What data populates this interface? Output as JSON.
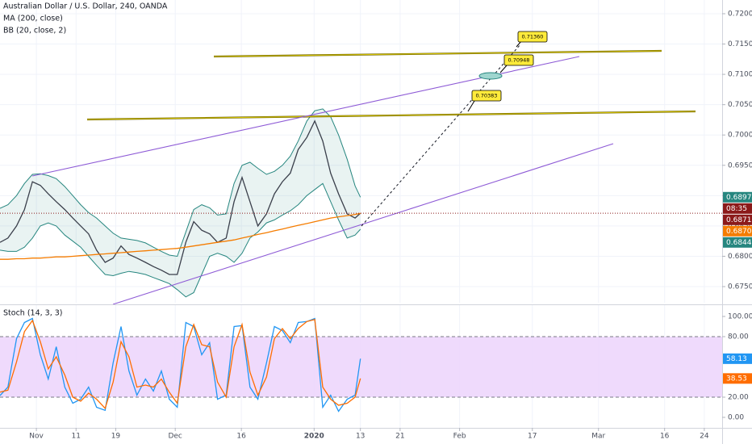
{
  "chart_data": {
    "type": "line",
    "x": [
      -5.5,
      -4.3,
      -3.0,
      -1.8,
      -0.6,
      0.6,
      1.8,
      3.0,
      4.3,
      5.5,
      6.7,
      7.9,
      9.1,
      10.4,
      11.6,
      12.8,
      14.0,
      15.2,
      16.5,
      17.7,
      18.9,
      20.1,
      21.3,
      22.6,
      23.8,
      25.0,
      26.2,
      27.4,
      28.7,
      29.9,
      31.1,
      32.3,
      33.5,
      34.8,
      36.0,
      37.2,
      38.4,
      39.6,
      40.9,
      42.1,
      43.3,
      44.5,
      45.7,
      47.0,
      48.2,
      49.0
    ],
    "xlim": [
      -5.5,
      103.7
    ],
    "xticks": [
      {
        "value": 0,
        "label": "Nov"
      },
      {
        "value": 6,
        "label": "11"
      },
      {
        "value": 12,
        "label": "19"
      },
      {
        "value": 21,
        "label": "Dec"
      },
      {
        "value": 31,
        "label": "16"
      },
      {
        "value": 42,
        "label": "2020"
      },
      {
        "value": 49,
        "label": "13"
      },
      {
        "value": 55,
        "label": "21"
      },
      {
        "value": 64,
        "label": "Feb"
      },
      {
        "value": 75,
        "label": "17"
      },
      {
        "value": 85,
        "label": "Mar"
      },
      {
        "value": 95,
        "label": "16"
      },
      {
        "value": 101,
        "label": "24"
      }
    ],
    "ylim": [
      0.67234,
      0.72226
    ],
    "yticks": [
      {
        "value": 0.72,
        "label": "0.72000"
      },
      {
        "value": 0.715,
        "label": "0.71500"
      },
      {
        "value": 0.71,
        "label": "0.71000"
      },
      {
        "value": 0.705,
        "label": "0.70500"
      },
      {
        "value": 0.7,
        "label": "0.70000"
      },
      {
        "value": 0.695,
        "label": "0.69500"
      },
      {
        "value": 0.69,
        "label": "0.69000"
      },
      {
        "value": 0.685,
        "label": "0.68500"
      },
      {
        "value": 0.68,
        "label": "0.68000"
      },
      {
        "value": 0.675,
        "label": "0.67500"
      }
    ],
    "grid": true,
    "series": [
      {
        "name": "Australian Dollar / U.S. Dollar, 240, OANDA",
        "color": "#3a3f4b",
        "last_color": "#8b1a1a",
        "last_label": "0.68710",
        "countdown": "08:35",
        "values": [
          0.6823,
          0.683,
          0.685,
          0.6877,
          0.6923,
          0.6917,
          0.6903,
          0.689,
          0.6877,
          0.6863,
          0.685,
          0.6837,
          0.681,
          0.679,
          0.6797,
          0.6817,
          0.6803,
          0.6797,
          0.679,
          0.6783,
          0.6777,
          0.677,
          0.677,
          0.6823,
          0.6857,
          0.6843,
          0.6837,
          0.6823,
          0.683,
          0.689,
          0.693,
          0.689,
          0.685,
          0.687,
          0.6903,
          0.6923,
          0.6937,
          0.6976,
          0.6996,
          0.7023,
          0.699,
          0.6937,
          0.6903,
          0.687,
          0.6863,
          0.6871
        ]
      },
      {
        "name": "MA (200, close)",
        "color": "#f57c00",
        "last_color": "#f57c00",
        "last_label": "0.68708",
        "values": [
          0.6795,
          0.6795,
          0.6796,
          0.6796,
          0.6797,
          0.6797,
          0.6798,
          0.6799,
          0.6799,
          0.68,
          0.6801,
          0.6802,
          0.6803,
          0.6804,
          0.6805,
          0.6806,
          0.6807,
          0.6808,
          0.6809,
          0.681,
          0.6811,
          0.6812,
          0.6813,
          0.6815,
          0.6817,
          0.6819,
          0.6821,
          0.6823,
          0.6825,
          0.6827,
          0.683,
          0.6833,
          0.6836,
          0.6839,
          0.6842,
          0.6845,
          0.6848,
          0.6851,
          0.6854,
          0.6857,
          0.686,
          0.6863,
          0.6865,
          0.6867,
          0.6869,
          0.68708
        ]
      }
    ],
    "band": {
      "name": "BB (20, close, 2)",
      "color": "#26867f",
      "upper_label": "0.68974",
      "lower_label": "0.68446",
      "upper": [
        0.6879,
        0.6885,
        0.69,
        0.692,
        0.6935,
        0.6936,
        0.6933,
        0.6928,
        0.6915,
        0.69,
        0.6885,
        0.6872,
        0.6863,
        0.685,
        0.6838,
        0.683,
        0.6828,
        0.6826,
        0.6822,
        0.6815,
        0.6808,
        0.6802,
        0.68,
        0.684,
        0.6877,
        0.6885,
        0.688,
        0.6868,
        0.687,
        0.692,
        0.695,
        0.6955,
        0.6945,
        0.6935,
        0.694,
        0.695,
        0.6965,
        0.699,
        0.7023,
        0.704,
        0.7043,
        0.703,
        0.7,
        0.696,
        0.6916,
        0.68974
      ],
      "lower": [
        0.681,
        0.6808,
        0.6808,
        0.6815,
        0.683,
        0.685,
        0.6855,
        0.685,
        0.6835,
        0.6825,
        0.6815,
        0.68,
        0.6785,
        0.677,
        0.6768,
        0.6772,
        0.6775,
        0.6773,
        0.677,
        0.6765,
        0.676,
        0.6755,
        0.6745,
        0.6733,
        0.674,
        0.677,
        0.68,
        0.6805,
        0.68,
        0.679,
        0.6805,
        0.683,
        0.684,
        0.6855,
        0.686,
        0.6868,
        0.6875,
        0.6885,
        0.69,
        0.691,
        0.692,
        0.689,
        0.686,
        0.683,
        0.6835,
        0.68446
      ]
    },
    "annotations": [
      "0.71360",
      "0.70948",
      "0.70383"
    ],
    "oscillator": {
      "type": "line",
      "name": "Stoch (14, 3, 3)",
      "ylim": [
        -10.4,
        111.2
      ],
      "yticks": [
        {
          "value": 100,
          "label": "100.00"
        },
        {
          "value": 80,
          "label": "80.00"
        },
        {
          "value": 20,
          "label": "20.00"
        },
        {
          "value": 0,
          "label": "0.00"
        }
      ],
      "band_range": [
        20,
        80
      ],
      "band_color": "#ecd3fb",
      "series": [
        {
          "color": "#2196f3",
          "values": [
            21.6,
            30,
            78,
            94,
            98,
            62,
            38,
            70,
            30,
            14,
            18,
            30,
            10,
            7,
            54,
            90,
            46,
            22,
            38,
            26,
            46,
            18,
            10,
            94,
            90,
            62,
            74,
            18,
            22,
            90,
            91,
            30,
            18,
            54,
            90,
            86,
            74,
            94,
            95,
            98,
            10,
            22,
            6,
            18,
            22,
            58.13
          ]
        },
        {
          "color": "#ff6d00",
          "values": [
            25,
            27,
            55,
            85,
            96,
            75,
            48,
            60,
            42,
            20,
            16,
            24,
            18,
            9,
            35,
            75,
            60,
            30,
            32,
            30,
            38,
            25,
            14,
            70,
            92,
            72,
            70,
            35,
            20,
            70,
            92,
            45,
            22,
            40,
            78,
            88,
            78,
            88,
            95,
            97,
            30,
            18,
            12,
            14,
            20,
            38.53
          ]
        }
      ]
    }
  }
}
